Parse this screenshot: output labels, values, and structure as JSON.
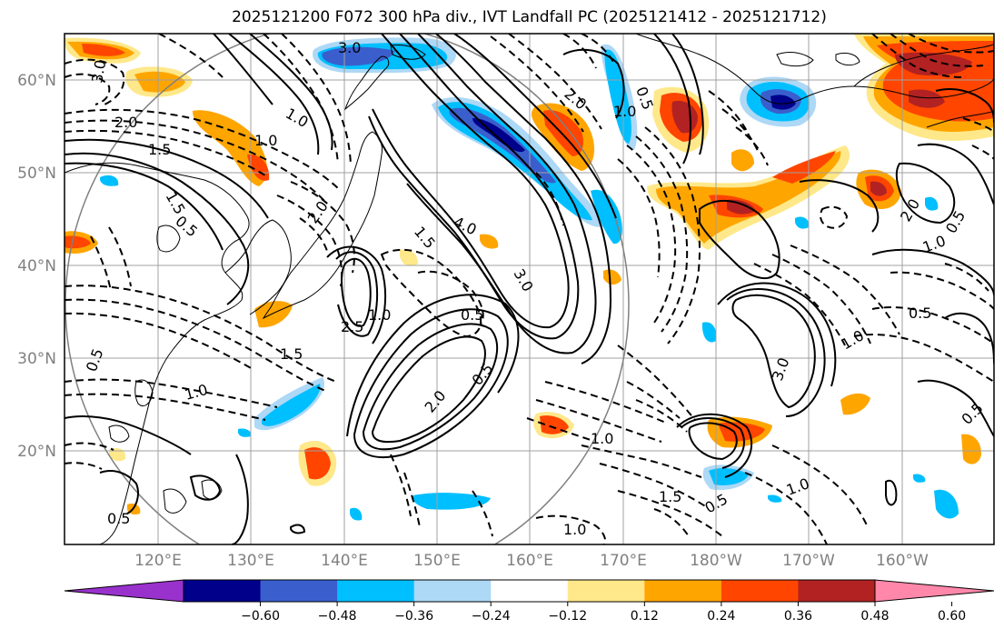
{
  "title": "2025121200 F072 300 hPa div., IVT Landfall PC (2025121412 - 2025121712)",
  "latitude_labels": [
    "60°N",
    "50°N",
    "40°N",
    "30°N",
    "20°N"
  ],
  "longitude_labels": [
    "120°E",
    "130°E",
    "140°E",
    "150°E",
    "160°E",
    "170°E",
    "180°W",
    "170°W",
    "160°W"
  ],
  "colorbar": {
    "tick_labels": [
      "−0.60",
      "−0.48",
      "−0.36",
      "−0.24",
      "−0.12",
      "0.12",
      "0.24",
      "0.36",
      "0.48",
      "0.60"
    ],
    "colors": [
      "#9932cc",
      "#00008b",
      "#3a5fcd",
      "#00bfff",
      "#add8f6",
      "#ffffff",
      "#ffe88a",
      "#ffa500",
      "#ff4500",
      "#b22222",
      "#ff88aa"
    ]
  },
  "contour_labels": [
    "3.0",
    "3.0",
    "1.0",
    "2.0",
    "1.5",
    "0.5",
    "2.0",
    "1.0",
    "4.0",
    "1.5",
    "3.0",
    "0.5",
    "1.0",
    "2.5",
    "2.0",
    "1.5",
    "0.5",
    "1.0",
    "2.0",
    "0.5",
    "1.0",
    "1.5",
    "0.5",
    "1.0",
    "3.0",
    "1.0",
    "0.5",
    "1.0",
    "2.0",
    "0.5",
    "1.0",
    "1.5",
    "0.5",
    "0.5",
    "1.0",
    "0.5"
  ],
  "palette": {
    "frame": "#000000",
    "grid": "#a0a0a0",
    "coast": "#000000"
  }
}
